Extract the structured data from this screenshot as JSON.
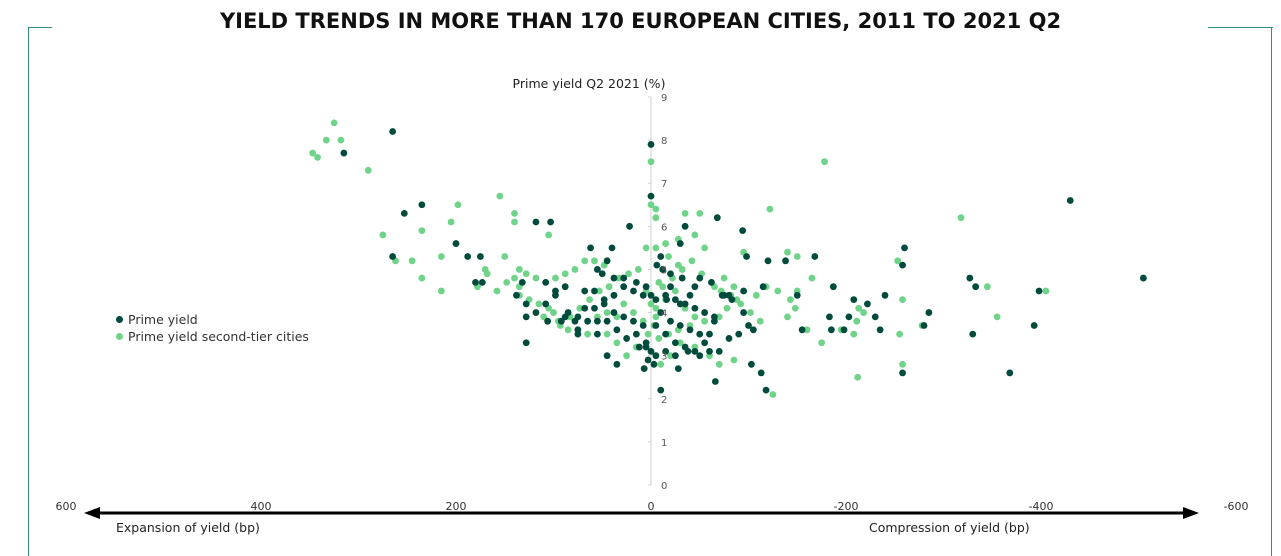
{
  "title": "YIELD TRENDS IN MORE THAN 170 EUROPEAN CITIES, 2011 TO 2021 Q2",
  "colors": {
    "frame": "#2f8f7c",
    "prime": "#014b3c",
    "second": "#6fd389",
    "axis": "#d0d0d0",
    "arrow": "#000000"
  },
  "arrow_labels": {
    "left": "Expansion of yield (bp)",
    "right": "Compression of yield (bp)"
  },
  "chart_data": {
    "type": "scatter",
    "title": "YIELD TRENDS IN MORE THAN 170 EUROPEAN CITIES, 2011 TO 2021 Q2",
    "xlabel": "",
    "ylabel": "Prime yield Q2 2021 (%)",
    "xlim": [
      600,
      -600
    ],
    "ylim": [
      0,
      9
    ],
    "x_reversed": true,
    "x_ticks": [
      600,
      400,
      200,
      0,
      -200,
      -400,
      -600
    ],
    "y_ticks": [
      0,
      1,
      2,
      3,
      4,
      5,
      6,
      7,
      8,
      9
    ],
    "legend_position": "left",
    "series": [
      {
        "name": "Prime yield",
        "color": "#014b3c",
        "points": [
          [
            265,
            8.2
          ],
          [
            315,
            7.7
          ],
          [
            0,
            7.9
          ],
          [
            0,
            6.7
          ],
          [
            235,
            6.5
          ],
          [
            253,
            6.3
          ],
          [
            200,
            5.6
          ],
          [
            118,
            6.1
          ],
          [
            103,
            6.1
          ],
          [
            22,
            6.0
          ],
          [
            -35,
            6.0
          ],
          [
            -68,
            6.2
          ],
          [
            -94,
            5.9
          ],
          [
            -430,
            6.6
          ],
          [
            -260,
            5.5
          ],
          [
            -258,
            5.1
          ],
          [
            -168,
            5.3
          ],
          [
            -120,
            5.2
          ],
          [
            -98,
            5.3
          ],
          [
            -138,
            5.2
          ],
          [
            -505,
            4.8
          ],
          [
            -327,
            4.8
          ],
          [
            -333,
            4.6
          ],
          [
            -398,
            4.5
          ],
          [
            -187,
            4.6
          ],
          [
            -208,
            4.3
          ],
          [
            -222,
            4.2
          ],
          [
            -240,
            4.4
          ],
          [
            -115,
            4.6
          ],
          [
            -95,
            4.5
          ],
          [
            -80,
            4.4
          ],
          [
            -150,
            4.4
          ],
          [
            -285,
            4.0
          ],
          [
            -280,
            3.7
          ],
          [
            -183,
            3.9
          ],
          [
            -203,
            3.9
          ],
          [
            -198,
            3.6
          ],
          [
            -230,
            3.9
          ],
          [
            -235,
            3.6
          ],
          [
            -185,
            3.6
          ],
          [
            -330,
            3.5
          ],
          [
            -368,
            2.6
          ],
          [
            -393,
            3.7
          ],
          [
            -258,
            2.6
          ],
          [
            -66,
            2.4
          ],
          [
            -113,
            2.6
          ],
          [
            -118,
            2.2
          ],
          [
            -103,
            2.8
          ],
          [
            -10,
            2.2
          ],
          [
            -155,
            3.6
          ],
          [
            -105,
            3.6
          ],
          [
            265,
            5.3
          ],
          [
            188,
            5.3
          ],
          [
            175,
            5.3
          ],
          [
            180,
            4.7
          ],
          [
            173,
            4.7
          ],
          [
            132,
            4.7
          ],
          [
            138,
            4.4
          ],
          [
            128,
            4.2
          ],
          [
            98,
            4.5
          ],
          [
            88,
            4.6
          ],
          [
            68,
            4.5
          ],
          [
            58,
            4.5
          ],
          [
            48,
            4.3
          ],
          [
            38,
            4.4
          ],
          [
            28,
            4.6
          ],
          [
            18,
            4.5
          ],
          [
            8,
            4.4
          ],
          [
            108,
            4.2
          ],
          [
            88,
            3.9
          ],
          [
            78,
            3.8
          ],
          [
            68,
            4.1
          ],
          [
            58,
            4.1
          ],
          [
            48,
            4.2
          ],
          [
            38,
            4.0
          ],
          [
            28,
            3.9
          ],
          [
            18,
            3.8
          ],
          [
            8,
            3.7
          ],
          [
            128,
            3.9
          ],
          [
            106,
            3.8
          ],
          [
            75,
            3.5
          ],
          [
            55,
            3.5
          ],
          [
            45,
            3.8
          ],
          [
            35,
            3.6
          ],
          [
            25,
            3.4
          ],
          [
            15,
            3.5
          ],
          [
            5,
            3.3
          ],
          [
            45,
            5.2
          ],
          [
            55,
            5.0
          ],
          [
            62,
            5.5
          ],
          [
            40,
            5.5
          ],
          [
            50,
            4.9
          ],
          [
            38,
            4.8
          ],
          [
            28,
            4.8
          ],
          [
            15,
            4.7
          ],
          [
            5,
            4.6
          ],
          [
            0,
            4.4
          ],
          [
            -5,
            4.3
          ],
          [
            -15,
            4.4
          ],
          [
            -25,
            4.3
          ],
          [
            -35,
            4.2
          ],
          [
            -45,
            4.1
          ],
          [
            -55,
            4.0
          ],
          [
            -65,
            3.9
          ],
          [
            -10,
            4.0
          ],
          [
            -20,
            3.8
          ],
          [
            -30,
            3.7
          ],
          [
            -40,
            3.6
          ],
          [
            -50,
            3.5
          ],
          [
            -60,
            3.5
          ],
          [
            -5,
            3.7
          ],
          [
            -15,
            3.5
          ],
          [
            -25,
            3.3
          ],
          [
            -35,
            3.2
          ],
          [
            -45,
            3.1
          ],
          [
            -55,
            3.3
          ],
          [
            5,
            3.2
          ],
          [
            -5,
            3.0
          ],
          [
            -15,
            3.1
          ],
          [
            0,
            3.1
          ],
          [
            3,
            2.9
          ],
          [
            7,
            2.7
          ],
          [
            -3,
            2.8
          ],
          [
            -25,
            3.0
          ],
          [
            -28,
            2.7
          ],
          [
            -38,
            3.1
          ],
          [
            -50,
            3.0
          ],
          [
            -60,
            3.1
          ],
          [
            -70,
            3.1
          ],
          [
            -80,
            3.4
          ],
          [
            -90,
            3.5
          ],
          [
            -100,
            3.7
          ],
          [
            -12,
            5.0
          ],
          [
            -10,
            5.3
          ],
          [
            -30,
            5.6
          ],
          [
            -50,
            4.8
          ],
          [
            -62,
            4.7
          ],
          [
            -73,
            4.4
          ],
          [
            -83,
            4.3
          ],
          [
            -95,
            4.0
          ],
          [
            -65,
            3.8
          ],
          [
            -75,
            4.4
          ],
          [
            108,
            4.7
          ],
          [
            98,
            4.4
          ],
          [
            118,
            4.0
          ],
          [
            92,
            3.8
          ],
          [
            85,
            4.0
          ],
          [
            75,
            3.9
          ],
          [
            65,
            3.8
          ],
          [
            55,
            3.8
          ],
          [
            128,
            3.3
          ],
          [
            75,
            3.6
          ],
          [
            45,
            3.0
          ],
          [
            35,
            2.8
          ],
          [
            12,
            3.2
          ],
          [
            -20,
            4.6
          ],
          [
            -30,
            4.2
          ],
          [
            -40,
            4.4
          ],
          [
            -20,
            4.9
          ],
          [
            -32,
            4.8
          ],
          [
            -45,
            4.6
          ],
          [
            -6,
            5.1
          ],
          [
            -16,
            4.3
          ]
        ]
      },
      {
        "name": "Prime yield second-tier cities",
        "color": "#6fd389",
        "points": [
          [
            325,
            8.4
          ],
          [
            333,
            8.0
          ],
          [
            318,
            8.0
          ],
          [
            347,
            7.7
          ],
          [
            342,
            7.6
          ],
          [
            290,
            7.3
          ],
          [
            0,
            7.5
          ],
          [
            -178,
            7.5
          ],
          [
            155,
            6.7
          ],
          [
            198,
            6.5
          ],
          [
            140,
            6.3
          ],
          [
            140,
            6.1
          ],
          [
            205,
            6.1
          ],
          [
            105,
            5.8
          ],
          [
            -318,
            6.2
          ],
          [
            -122,
            6.4
          ],
          [
            -35,
            6.3
          ],
          [
            -50,
            6.3
          ],
          [
            -5,
            6.4
          ],
          [
            0,
            6.5
          ],
          [
            -5,
            6.2
          ],
          [
            275,
            5.8
          ],
          [
            235,
            5.9
          ],
          [
            215,
            5.3
          ],
          [
            245,
            5.2
          ],
          [
            262,
            5.2
          ],
          [
            150,
            5.3
          ],
          [
            135,
            5.0
          ],
          [
            140,
            4.8
          ],
          [
            135,
            4.6
          ],
          [
            170,
            5.0
          ],
          [
            168,
            4.9
          ],
          [
            215,
            4.5
          ],
          [
            235,
            4.8
          ],
          [
            178,
            4.6
          ],
          [
            -5,
            5.5
          ],
          [
            5,
            5.5
          ],
          [
            -15,
            5.6
          ],
          [
            -28,
            5.7
          ],
          [
            -45,
            5.8
          ],
          [
            -55,
            5.5
          ],
          [
            -95,
            5.4
          ],
          [
            -140,
            5.4
          ],
          [
            -150,
            5.3
          ],
          [
            -345,
            4.6
          ],
          [
            -405,
            4.5
          ],
          [
            -253,
            5.2
          ],
          [
            -258,
            4.3
          ],
          [
            -165,
            4.8
          ],
          [
            -150,
            4.5
          ],
          [
            -143,
            4.3
          ],
          [
            -140,
            3.9
          ],
          [
            -160,
            3.6
          ],
          [
            -175,
            3.3
          ],
          [
            -195,
            3.6
          ],
          [
            -208,
            3.5
          ],
          [
            -212,
            2.5
          ],
          [
            -213,
            4.1
          ],
          [
            -218,
            4.0
          ],
          [
            -211,
            3.8
          ],
          [
            -255,
            3.5
          ],
          [
            -258,
            2.8
          ],
          [
            -278,
            3.7
          ],
          [
            -355,
            3.9
          ],
          [
            -148,
            4.1
          ],
          [
            -88,
            4.3
          ],
          [
            -78,
            4.1
          ],
          [
            -70,
            3.9
          ],
          [
            -55,
            3.8
          ],
          [
            -40,
            3.7
          ],
          [
            -28,
            3.6
          ],
          [
            -18,
            3.5
          ],
          [
            -8,
            3.4
          ],
          [
            -125,
            2.1
          ],
          [
            -85,
            2.9
          ],
          [
            -70,
            2.8
          ],
          [
            -60,
            3.0
          ],
          [
            -45,
            3.2
          ],
          [
            -30,
            3.3
          ],
          [
            -20,
            3.0
          ],
          [
            -10,
            2.8
          ],
          [
            15,
            3.2
          ],
          [
            25,
            3.0
          ],
          [
            35,
            3.3
          ],
          [
            45,
            3.5
          ],
          [
            55,
            3.9
          ],
          [
            65,
            3.5
          ],
          [
            75,
            3.6
          ],
          [
            85,
            3.6
          ],
          [
            95,
            3.8
          ],
          [
            105,
            4.1
          ],
          [
            115,
            4.2
          ],
          [
            125,
            4.3
          ],
          [
            135,
            4.4
          ],
          [
            148,
            4.7
          ],
          [
            158,
            4.5
          ],
          [
            48,
            5.1
          ],
          [
            58,
            5.2
          ],
          [
            68,
            5.2
          ],
          [
            78,
            5.0
          ],
          [
            88,
            4.9
          ],
          [
            98,
            4.8
          ],
          [
            108,
            4.7
          ],
          [
            118,
            4.8
          ],
          [
            128,
            4.9
          ],
          [
            13,
            5.0
          ],
          [
            23,
            4.9
          ],
          [
            33,
            4.8
          ],
          [
            43,
            4.6
          ],
          [
            53,
            4.5
          ],
          [
            63,
            4.3
          ],
          [
            73,
            4.1
          ],
          [
            83,
            3.9
          ],
          [
            93,
            3.7
          ],
          [
            -12,
            4.6
          ],
          [
            -22,
            4.8
          ],
          [
            -32,
            5.0
          ],
          [
            -42,
            5.2
          ],
          [
            -52,
            4.9
          ],
          [
            -62,
            4.7
          ],
          [
            -72,
            4.5
          ],
          [
            -82,
            4.4
          ],
          [
            -92,
            4.2
          ],
          [
            -102,
            4.0
          ],
          [
            -112,
            3.8
          ],
          [
            -5,
            4.1
          ],
          [
            -15,
            4.3
          ],
          [
            -25,
            4.5
          ],
          [
            -35,
            4.1
          ],
          [
            -45,
            3.9
          ],
          [
            8,
            3.8
          ],
          [
            18,
            4.0
          ],
          [
            28,
            4.2
          ],
          [
            38,
            4.4
          ],
          [
            -5,
            3.9
          ],
          [
            0,
            4.2
          ],
          [
            5,
            4.5
          ],
          [
            3,
            3.5
          ],
          [
            -3,
            3.7
          ],
          [
            -8,
            4.7
          ],
          [
            -18,
            5.3
          ],
          [
            -28,
            5.1
          ],
          [
            100,
            4.0
          ],
          [
            110,
            3.9
          ],
          [
            45,
            4.0
          ],
          [
            35,
            3.9
          ],
          [
            -65,
            4.6
          ],
          [
            -75,
            4.8
          ],
          [
            -85,
            4.6
          ],
          [
            -95,
            4.5
          ],
          [
            -108,
            4.4
          ],
          [
            -118,
            4.6
          ],
          [
            -130,
            4.5
          ]
        ]
      }
    ]
  }
}
